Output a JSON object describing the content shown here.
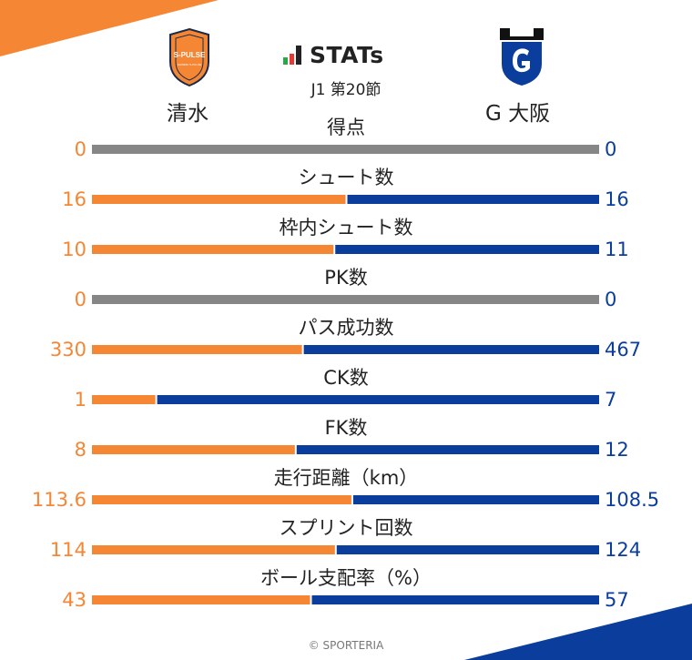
{
  "header": {
    "brand": "STATs",
    "subtitle": "J1 第20節",
    "home_team": "清水",
    "away_team": "G 大阪",
    "home_crest_text": "S-PULSE",
    "home_crest_subtext": "SHIMIZU S-PULSE",
    "home_color": "#F58634",
    "away_color": "#0B3D9C",
    "neutral_color": "#868686"
  },
  "chart_data": {
    "type": "bar",
    "orientation": "horizontal-diverging",
    "categories": [
      "得点",
      "シュート数",
      "枠内シュート数",
      "PK数",
      "パス成功数",
      "CK数",
      "FK数",
      "走行距離（km）",
      "スプリント回数",
      "ボール支配率（%）"
    ],
    "series": [
      {
        "name": "清水",
        "values": [
          0,
          16,
          10,
          0,
          330,
          1,
          8,
          113.6,
          114,
          43
        ],
        "labels": [
          "0",
          "16",
          "10",
          "0",
          "330",
          "1",
          "8",
          "113.6",
          "114",
          "43"
        ]
      },
      {
        "name": "G 大阪",
        "values": [
          0,
          16,
          11,
          0,
          467,
          7,
          12,
          108.5,
          124,
          57
        ],
        "labels": [
          "0",
          "16",
          "11",
          "0",
          "467",
          "7",
          "12",
          "108.5",
          "124",
          "57"
        ]
      }
    ]
  },
  "footer": {
    "copyright": "© SPORTERIA"
  }
}
